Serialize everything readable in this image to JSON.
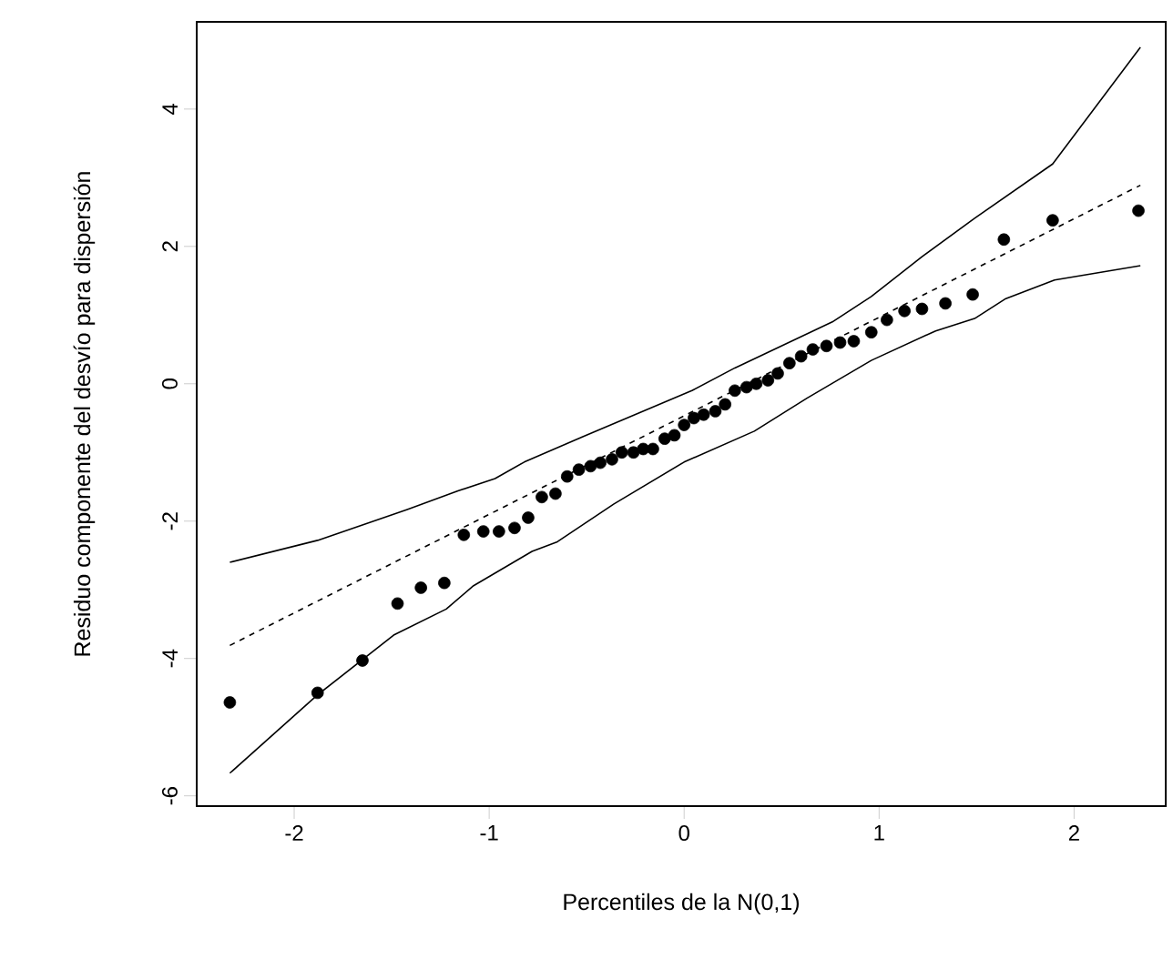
{
  "chart_data": {
    "type": "scatter",
    "xlabel": "Percentiles de la N(0,1)",
    "ylabel": "Residuo componente del desvío para dispersión",
    "marker": "circle",
    "grid": false,
    "xlim": [
      -2.5,
      2.47
    ],
    "ylim": [
      -6.15,
      5.27
    ],
    "xticks": [
      -2,
      -1,
      0,
      1,
      2
    ],
    "yticks": [
      -6,
      -4,
      -2,
      0,
      2,
      4
    ],
    "series": [
      {
        "color": "#000000",
        "x": [
          -2.33,
          -1.88,
          -1.65,
          -1.47,
          -1.35,
          -1.23,
          -1.13,
          -1.03,
          -0.95,
          -0.87,
          -0.8,
          -0.73,
          -0.66,
          -0.6,
          -0.54,
          -0.48,
          -0.43,
          -0.37,
          -0.32,
          -0.26,
          -0.21,
          -0.16,
          -0.1,
          -0.05,
          0,
          0.05,
          0.1,
          0.16,
          0.21,
          0.26,
          0.32,
          0.37,
          0.43,
          0.48,
          0.54,
          0.6,
          0.66,
          0.73,
          0.8,
          0.87,
          0.96,
          1.04,
          1.13,
          1.22,
          1.34,
          1.48,
          1.64,
          1.89,
          2.33
        ],
        "values": [
          -4.64,
          -4.5,
          -4.03,
          -3.2,
          -2.97,
          -2.9,
          -2.2,
          -2.15,
          -2.15,
          -2.1,
          -1.95,
          -1.65,
          -1.6,
          -1.35,
          -1.25,
          -1.2,
          -1.15,
          -1.1,
          -1.0,
          -1.0,
          -0.95,
          -0.95,
          -0.8,
          -0.75,
          -0.6,
          -0.5,
          -0.45,
          -0.4,
          -0.3,
          -0.1,
          -0.05,
          0,
          0.05,
          0.15,
          0.3,
          0.4,
          0.5,
          0.55,
          0.6,
          0.62,
          0.75,
          0.93,
          1.06,
          1.09,
          1.17,
          1.3,
          2.1,
          2.38,
          2.52
        ]
      },
      {
        "type": "line",
        "color": "#000000",
        "marker": "none",
        "line_style": "solid",
        "x": [
          -2.33,
          -1.88,
          -1.42,
          -1.16,
          -0.97,
          -0.82,
          -0.52,
          0.04,
          0.26,
          0.76,
          0.96,
          1.22,
          1.49,
          1.89,
          2.34
        ],
        "values": [
          -2.6,
          -2.28,
          -1.83,
          -1.56,
          -1.38,
          -1.14,
          -0.77,
          -0.1,
          0.23,
          0.9,
          1.27,
          1.85,
          2.41,
          3.2,
          4.9
        ]
      },
      {
        "type": "line",
        "color": "#000000",
        "marker": "none",
        "line_style": "solid",
        "x": [
          -2.33,
          -1.88,
          -1.49,
          -1.22,
          -1.08,
          -0.78,
          -0.65,
          -0.36,
          0,
          0.36,
          0.63,
          0.96,
          1.29,
          1.49,
          1.65,
          1.9,
          2.34
        ],
        "values": [
          -5.67,
          -4.53,
          -3.66,
          -3.28,
          -2.94,
          -2.44,
          -2.3,
          -1.75,
          -1.14,
          -0.69,
          -0.21,
          0.34,
          0.77,
          0.95,
          1.24,
          1.51,
          1.72
        ]
      },
      {
        "type": "line",
        "color": "#000000",
        "marker": "none",
        "line_style": "dashed",
        "x": [
          -2.33,
          2.34
        ],
        "values": [
          -3.81,
          2.89
        ]
      }
    ]
  }
}
